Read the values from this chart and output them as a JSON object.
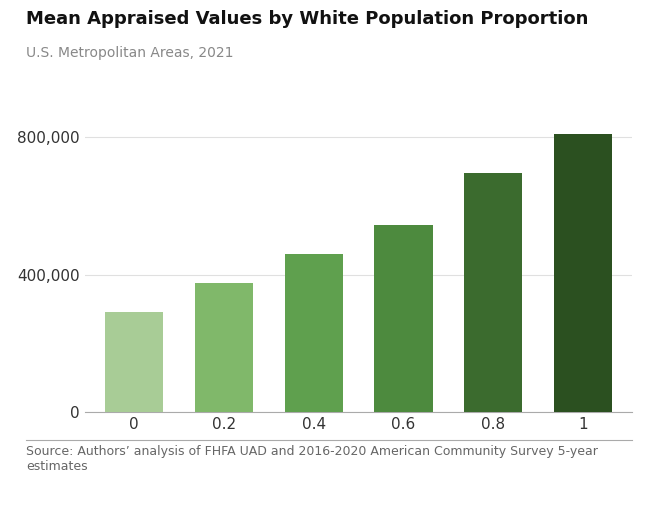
{
  "title": "Mean Appraised Values by White Population Proportion",
  "subtitle": "U.S. Metropolitan Areas, 2021",
  "source": "Source: Authors’ analysis of FHFA UAD and 2016-2020 American Community Survey 5-year\nestimates",
  "categories": [
    0,
    1,
    2,
    3,
    4,
    5
  ],
  "cat_labels": [
    "0",
    "0.2",
    "0.4",
    "0.6",
    "0.8",
    "1"
  ],
  "values": [
    290000,
    375000,
    460000,
    545000,
    695000,
    810000
  ],
  "bar_colors": [
    "#a8cc96",
    "#80b86a",
    "#5fa04e",
    "#4d8a3e",
    "#3b6b2e",
    "#2b5020"
  ],
  "ylim": [
    0,
    870000
  ],
  "yticks": [
    0,
    400000,
    800000
  ],
  "background_color": "#ffffff",
  "title_fontsize": 13,
  "subtitle_fontsize": 10,
  "source_fontsize": 9,
  "tick_fontsize": 11,
  "bar_width": 0.65,
  "title_color": "#111111",
  "subtitle_color": "#888888",
  "source_color": "#666666",
  "tick_color": "#333333",
  "spine_color": "#aaaaaa"
}
